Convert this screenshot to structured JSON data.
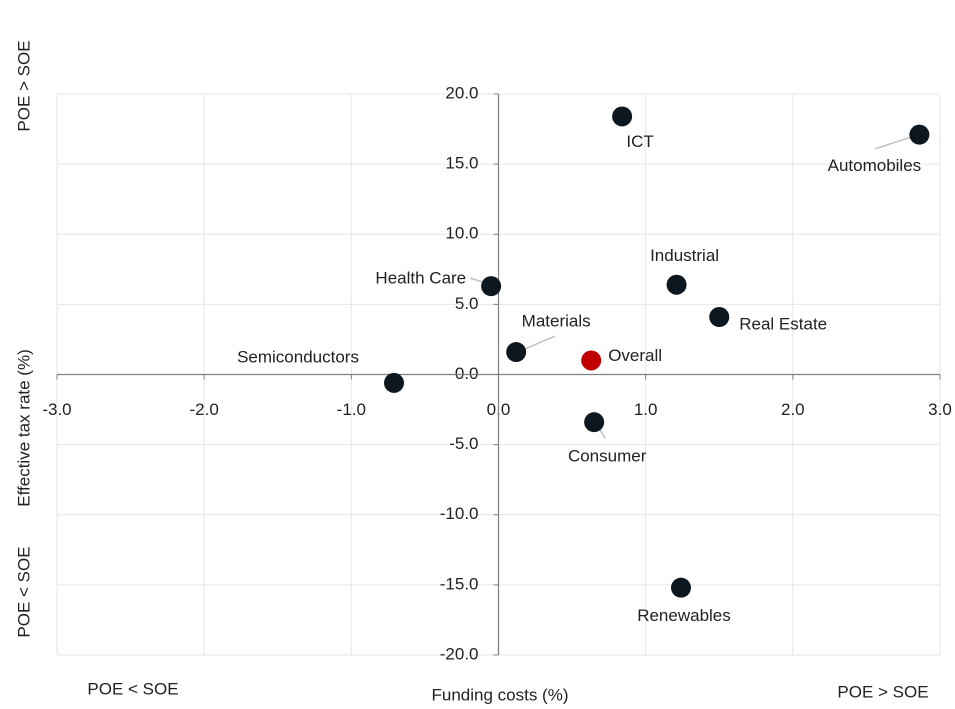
{
  "chart_data": {
    "type": "scatter",
    "xlabel": "Funding costs (%)",
    "ylabel": "Effective tax rate (%)",
    "annotations": {
      "y_high": "POE > SOE",
      "y_low": "POE < SOE",
      "x_low": "POE < SOE",
      "x_high": "POE > SOE"
    },
    "labels": [
      "ICT",
      "Automobiles",
      "Health Care",
      "Industrial",
      "Real Estate",
      "Materials",
      "Overall",
      "Semiconductors",
      "Consumer",
      "Renewables"
    ],
    "x": [
      0.84,
      2.86,
      -0.05,
      1.21,
      1.5,
      0.12,
      0.63,
      -0.71,
      0.65,
      1.24
    ],
    "y": [
      18.4,
      17.1,
      6.3,
      6.4,
      4.1,
      1.6,
      1.0,
      -0.6,
      -3.4,
      -15.2
    ],
    "colors": [
      "#0d1720",
      "#0d1720",
      "#0d1720",
      "#0d1720",
      "#0d1720",
      "#0d1720",
      "#c00000",
      "#0d1720",
      "#0d1720",
      "#0d1720"
    ],
    "xlim": [
      -3,
      3
    ],
    "ylim": [
      -20,
      20
    ],
    "xticks": [
      {
        "value": -3,
        "label": "-3.0"
      },
      {
        "value": -2,
        "label": "-2.0"
      },
      {
        "value": -1,
        "label": "-1.0"
      },
      {
        "value": 0,
        "label": "0.0"
      },
      {
        "value": 1,
        "label": "1.0"
      },
      {
        "value": 2,
        "label": "2.0"
      },
      {
        "value": 3,
        "label": "3.0"
      }
    ],
    "yticks": [
      {
        "value": -20,
        "label": "-20.0"
      },
      {
        "value": -15,
        "label": "-15.0"
      },
      {
        "value": -10,
        "label": "-10.0"
      },
      {
        "value": -5,
        "label": "-5.0"
      },
      {
        "value": 0,
        "label": "0.0"
      },
      {
        "value": 5,
        "label": "5.0"
      },
      {
        "value": 10,
        "label": "10.0"
      },
      {
        "value": 15,
        "label": "15.0"
      },
      {
        "value": 20,
        "label": "20.0"
      }
    ],
    "grid": true
  }
}
